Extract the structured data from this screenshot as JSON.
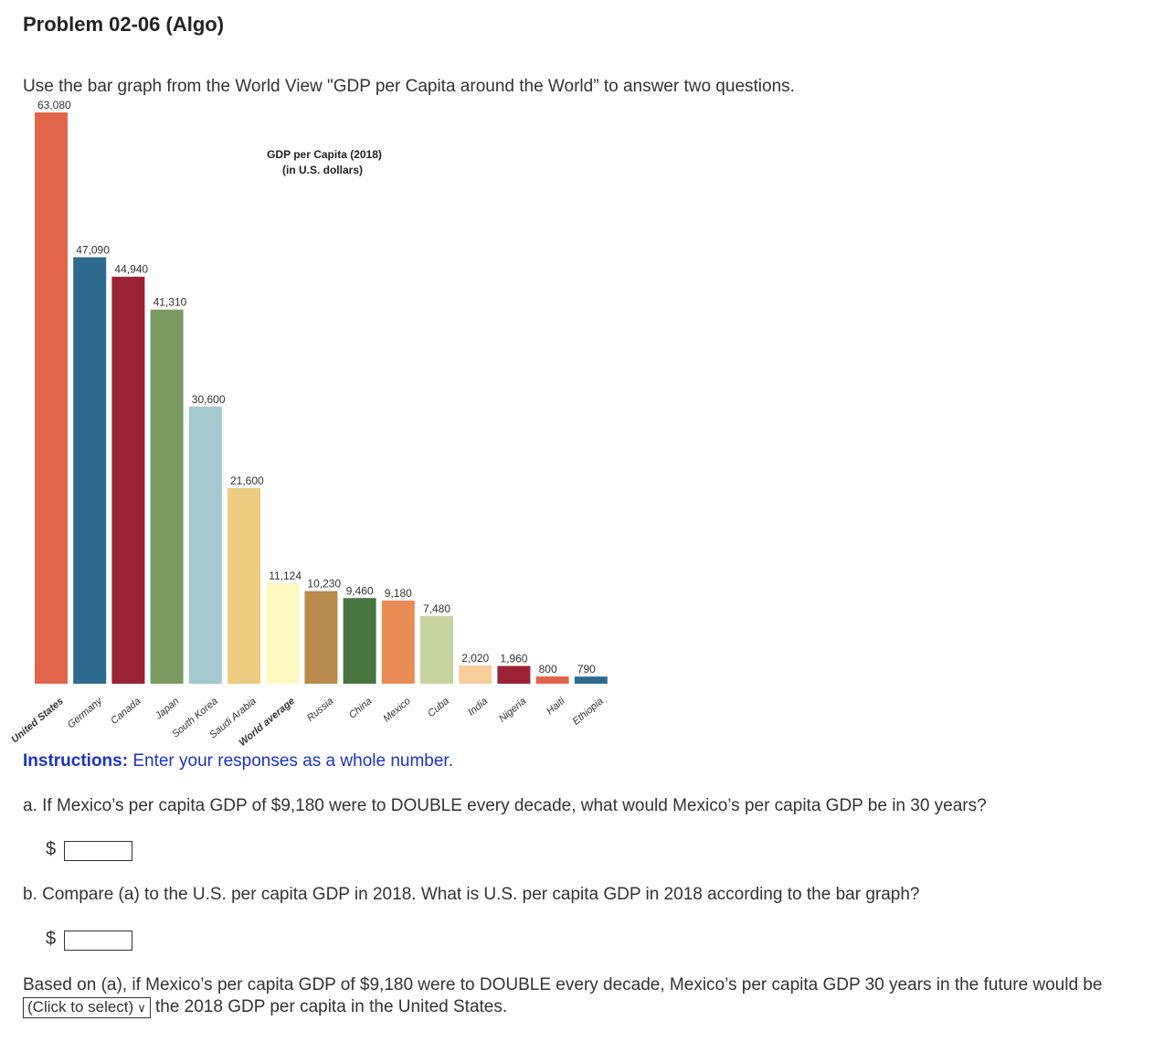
{
  "page": {
    "title": "Problem 02-06 (Algo)",
    "intro": "Use the bar graph from the World View \"GDP per Capita around the World” to answer two questions.",
    "instructions_label": "Instructions:",
    "instructions_text": " Enter your responses as a whole number.",
    "question_a": "a. If Mexico’s per capita GDP of $9,180 were to DOUBLE every decade, what would Mexico’s per capita GDP be in 30 years?",
    "question_b": "b. Compare (a) to the U.S. per capita GDP in 2018. What is U.S. per capita GDP in 2018 according to the bar graph?",
    "currency_symbol": "$",
    "answer_a_value": "",
    "answer_b_value": "",
    "final_text_before": "Based on (a), if Mexico’s per capita GDP of $9,180 were to DOUBLE every decade, Mexico’s per capita GDP 30 years in the future would be ",
    "select_label": "(Click to select)",
    "final_text_after": " the 2018 GDP per capita in the United States."
  },
  "chart_data": {
    "type": "bar",
    "title": "GDP per Capita (2018)",
    "subtitle": "(in U.S. dollars)",
    "categories": [
      "United States",
      "Germany",
      "Canada",
      "Japan",
      "South Korea",
      "Saudi Arabia",
      "World average",
      "Russia",
      "China",
      "Mexico",
      "Cuba",
      "India",
      "Nigeria",
      "Haiti",
      "Ethiopia"
    ],
    "values": [
      63080,
      47090,
      44940,
      41310,
      30600,
      21600,
      11124,
      10230,
      9460,
      9180,
      7480,
      2020,
      1960,
      800,
      790
    ],
    "value_labels": [
      "63,080",
      "47,090",
      "44,940",
      "41,310",
      "30,600",
      "21,600",
      "11,124",
      "10,230",
      "9,460",
      "9,180",
      "7,480",
      "2,020",
      "1,960",
      "800",
      "790"
    ],
    "colors": [
      "#e0654a",
      "#2e6a8e",
      "#9b2235",
      "#7a9a62",
      "#a5c8cf",
      "#ebcb80",
      "#fff8bf",
      "#b98b4d",
      "#487540",
      "#e98b55",
      "#c7d49f",
      "#f7cd9c",
      "#9b2235",
      "#e0654a",
      "#2e6a8e"
    ],
    "ylim": [
      0,
      63080
    ],
    "grid": false,
    "legend": "none"
  }
}
